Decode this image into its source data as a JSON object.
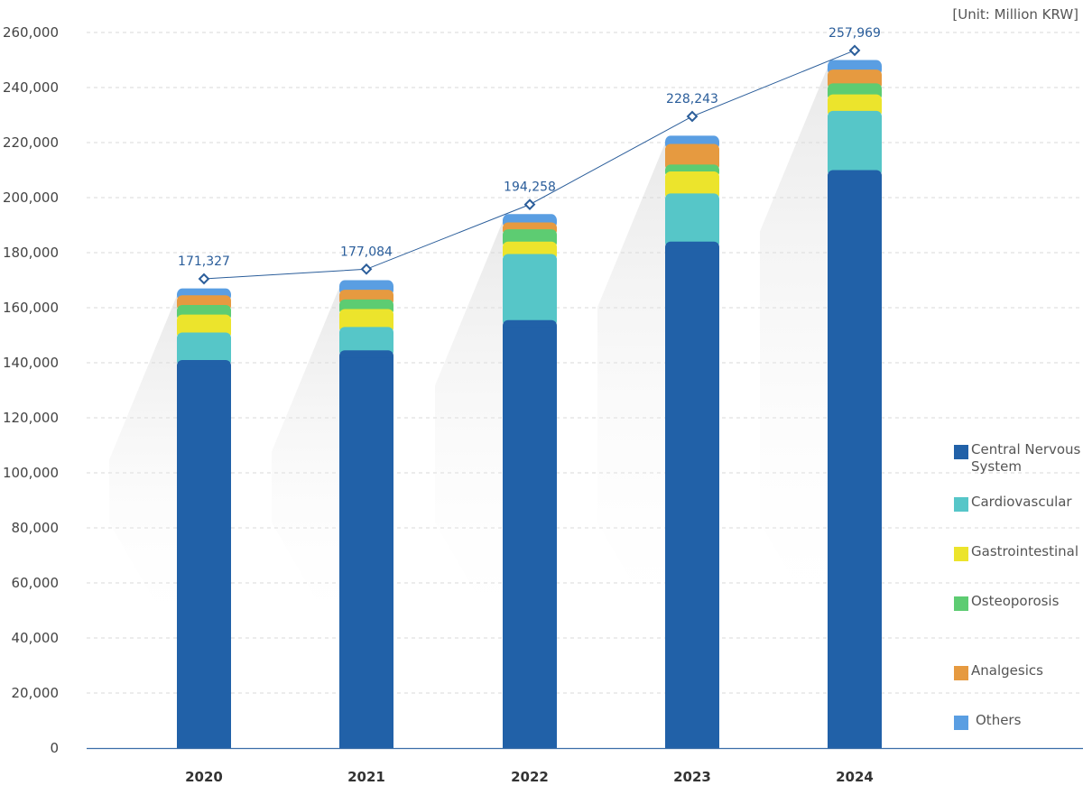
{
  "chart_data": {
    "type": "bar",
    "stacked": true,
    "unit_label": "[Unit: Million KRW]",
    "categories": [
      "2020",
      "2021",
      "2022",
      "2023",
      "2024"
    ],
    "ylim": [
      0,
      260000
    ],
    "yticks": [
      0,
      20000,
      40000,
      60000,
      80000,
      100000,
      120000,
      140000,
      160000,
      180000,
      200000,
      220000,
      240000,
      260000
    ],
    "ytick_labels": [
      "0",
      "20,000",
      "40,000",
      "60,000",
      "80,000",
      "100,000",
      "120,000",
      "140,000",
      "160,000",
      "180,000",
      "200,000",
      "220,000",
      "240,000",
      "260,000"
    ],
    "grid": true,
    "legend_position": "right",
    "series": [
      {
        "name": "Central Nervous System",
        "color": "#2161a8",
        "values": [
          141000,
          144500,
          155500,
          184000,
          210000
        ]
      },
      {
        "name": "Cardiovascular",
        "color": "#56c6c8",
        "values": [
          10000,
          8500,
          24000,
          17500,
          21500
        ]
      },
      {
        "name": "Gastrointestinal",
        "color": "#ece42c",
        "values": [
          6500,
          6500,
          4500,
          8000,
          6000
        ]
      },
      {
        "name": "Osteoporosis",
        "color": "#5dcc72",
        "values": [
          3500,
          3500,
          4500,
          2500,
          4000
        ]
      },
      {
        "name": "Analgesics",
        "color": "#e69a40",
        "values": [
          3500,
          3500,
          2500,
          7500,
          5000
        ]
      },
      {
        "name": "Others",
        "color": "#5a9ee2",
        "values": [
          2500,
          3500,
          3000,
          3000,
          3500
        ]
      }
    ],
    "totals_line": {
      "color": "#2a5d9a",
      "values": [
        170500,
        174000,
        197500,
        229500,
        253500
      ],
      "labels": [
        "171,327",
        "177,084",
        "194,258",
        "228,243",
        "257,969"
      ]
    }
  }
}
